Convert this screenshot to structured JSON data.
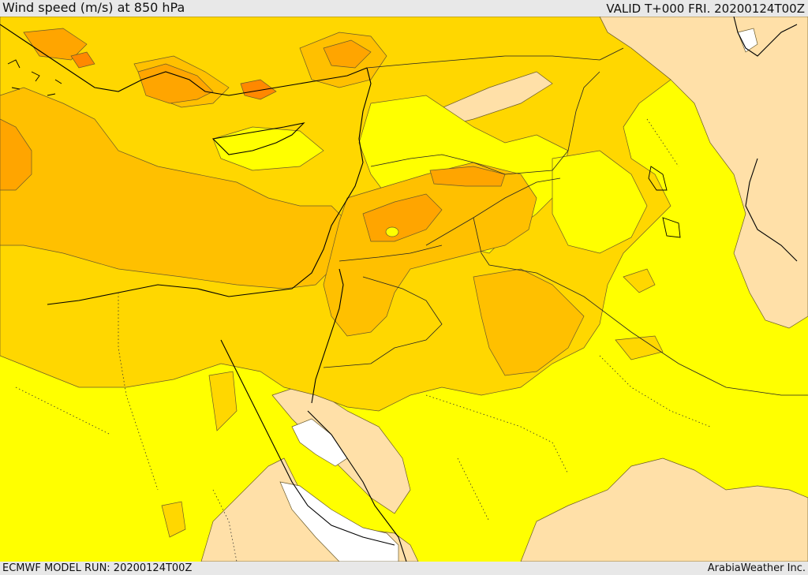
{
  "header": {
    "title": "Wind speed (m/s) at 850 hPa",
    "valid": "VALID T+000 FRI. 20200124T00Z"
  },
  "footer": {
    "model_run": "ECMWF MODEL RUN: 20200124T00Z",
    "credit": "ArabiaWeather Inc."
  },
  "map": {
    "field": "wind-speed-850hPa",
    "colors": {
      "calm": "#ffffff",
      "light": "#ffe0a8",
      "moderate": "#ffff00",
      "fresh": "#ffd700",
      "strong": "#ffc000",
      "very_strong": "#ffa500",
      "gale": "#ff8800",
      "storm": "#ff6a00",
      "contour": "#6a5a2a",
      "coastline": "#000000",
      "border": "#222222"
    }
  }
}
